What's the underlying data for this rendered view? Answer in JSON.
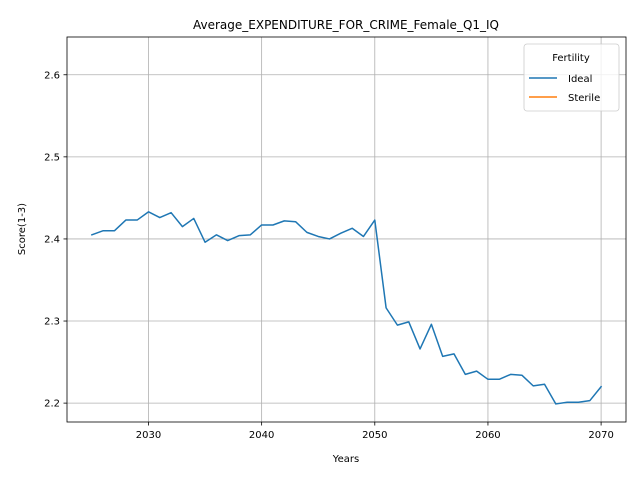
{
  "chart_data": {
    "type": "line",
    "title": "Average_EXPENDITURE_FOR_CRIME_Female_Q1_IQ",
    "xlabel": "Years",
    "ylabel": "Score(1-3)",
    "xlim": [
      2022.8,
      2072.2
    ],
    "ylim": [
      2.177,
      2.646
    ],
    "xticks": [
      2030,
      2040,
      2050,
      2060,
      2070
    ],
    "yticks": [
      2.2,
      2.3,
      2.4,
      2.5,
      2.6
    ],
    "xtick_labels": [
      "2030",
      "2040",
      "2050",
      "2060",
      "2070"
    ],
    "ytick_labels": [
      "2.2",
      "2.3",
      "2.4",
      "2.5",
      "2.6"
    ],
    "grid": true,
    "legend": {
      "title": "Fertility",
      "placement": "top-right"
    },
    "series": [
      {
        "name": "Ideal",
        "color": "#1f77b4",
        "x": [
          2025,
          2026,
          2027,
          2028,
          2029,
          2030,
          2031,
          2032,
          2033,
          2034,
          2035,
          2036,
          2037,
          2038,
          2039,
          2040,
          2041,
          2042,
          2043,
          2044,
          2045,
          2046,
          2047,
          2048,
          2049,
          2050,
          2051,
          2052,
          2053,
          2054,
          2055,
          2056,
          2057,
          2058,
          2059,
          2060,
          2061,
          2062,
          2063,
          2064,
          2065,
          2066,
          2067,
          2068,
          2069,
          2070
        ],
        "values": [
          2.405,
          2.41,
          2.41,
          2.423,
          2.423,
          2.433,
          2.426,
          2.432,
          2.415,
          2.425,
          2.396,
          2.405,
          2.398,
          2.404,
          2.405,
          2.417,
          2.417,
          2.422,
          2.421,
          2.408,
          2.403,
          2.4,
          2.407,
          2.413,
          2.403,
          2.423,
          2.316,
          2.295,
          2.299,
          2.266,
          2.296,
          2.257,
          2.26,
          2.235,
          2.239,
          2.229,
          2.229,
          2.235,
          2.234,
          2.221,
          2.223,
          2.199,
          2.201,
          2.201,
          2.203,
          2.22
        ]
      },
      {
        "name": "Sterile",
        "color": "#ff7f0e",
        "x": [],
        "values": []
      }
    ]
  }
}
